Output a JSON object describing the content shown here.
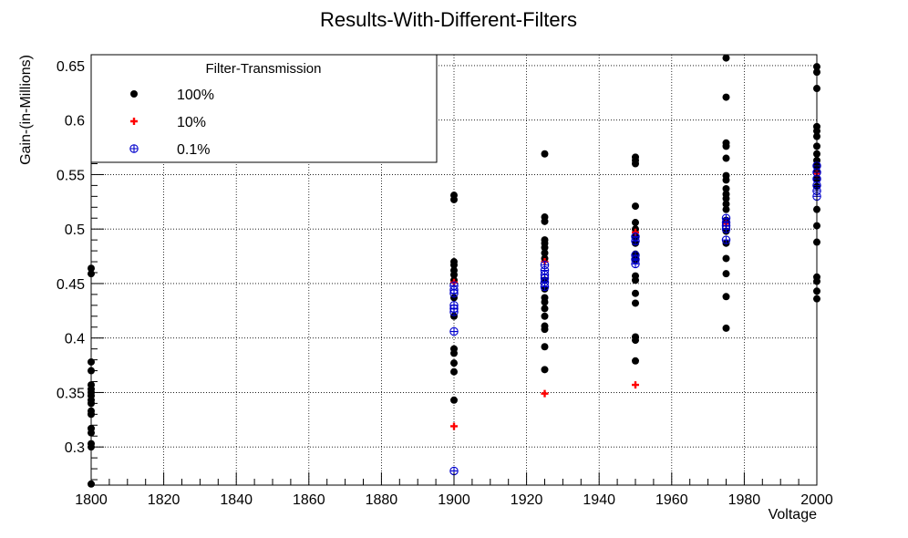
{
  "chart_data": {
    "type": "scatter",
    "title": "Results-With-Different-Filters",
    "xlabel": "Voltage",
    "ylabel": "Gain-(in-Millions)",
    "xlim": [
      1800,
      2000
    ],
    "ylim": [
      0.265,
      0.66
    ],
    "x_ticks": [
      "1800",
      "1820",
      "1840",
      "1860",
      "1880",
      "1900",
      "1920",
      "1940",
      "1960",
      "1980",
      "2000"
    ],
    "y_ticks": [
      "0.3",
      "0.35",
      "0.4",
      "0.45",
      "0.5",
      "0.55",
      "0.6",
      "0.65"
    ],
    "grid": true,
    "legend": {
      "title": "Filter-Transmission",
      "position": "top-left"
    },
    "series": [
      {
        "name": "100%",
        "marker": "filled-circle",
        "color": "#000000",
        "points": [
          [
            1800,
            0.464
          ],
          [
            1800,
            0.459
          ],
          [
            1800,
            0.378
          ],
          [
            1800,
            0.37
          ],
          [
            1800,
            0.357
          ],
          [
            1800,
            0.353
          ],
          [
            1800,
            0.35
          ],
          [
            1800,
            0.347
          ],
          [
            1800,
            0.343
          ],
          [
            1800,
            0.34
          ],
          [
            1800,
            0.333
          ],
          [
            1800,
            0.33
          ],
          [
            1800,
            0.317
          ],
          [
            1800,
            0.313
          ],
          [
            1800,
            0.303
          ],
          [
            1800,
            0.3
          ],
          [
            1800,
            0.266
          ],
          [
            1900,
            0.531
          ],
          [
            1900,
            0.527
          ],
          [
            1900,
            0.47
          ],
          [
            1900,
            0.467
          ],
          [
            1900,
            0.462
          ],
          [
            1900,
            0.458
          ],
          [
            1900,
            0.453
          ],
          [
            1900,
            0.437
          ],
          [
            1900,
            0.42
          ],
          [
            1900,
            0.39
          ],
          [
            1900,
            0.386
          ],
          [
            1900,
            0.377
          ],
          [
            1900,
            0.369
          ],
          [
            1900,
            0.343
          ],
          [
            1925,
            0.569
          ],
          [
            1925,
            0.511
          ],
          [
            1925,
            0.507
          ],
          [
            1925,
            0.49
          ],
          [
            1925,
            0.487
          ],
          [
            1925,
            0.483
          ],
          [
            1925,
            0.478
          ],
          [
            1925,
            0.473
          ],
          [
            1925,
            0.453
          ],
          [
            1925,
            0.445
          ],
          [
            1925,
            0.437
          ],
          [
            1925,
            0.433
          ],
          [
            1925,
            0.427
          ],
          [
            1925,
            0.42
          ],
          [
            1925,
            0.411
          ],
          [
            1925,
            0.408
          ],
          [
            1925,
            0.392
          ],
          [
            1925,
            0.371
          ],
          [
            1950,
            0.566
          ],
          [
            1950,
            0.563
          ],
          [
            1950,
            0.56
          ],
          [
            1950,
            0.521
          ],
          [
            1950,
            0.506
          ],
          [
            1950,
            0.5
          ],
          [
            1950,
            0.493
          ],
          [
            1950,
            0.487
          ],
          [
            1950,
            0.477
          ],
          [
            1950,
            0.472
          ],
          [
            1950,
            0.457
          ],
          [
            1950,
            0.453
          ],
          [
            1950,
            0.441
          ],
          [
            1950,
            0.432
          ],
          [
            1950,
            0.401
          ],
          [
            1950,
            0.398
          ],
          [
            1950,
            0.379
          ],
          [
            1975,
            0.657
          ],
          [
            1975,
            0.621
          ],
          [
            1975,
            0.579
          ],
          [
            1975,
            0.576
          ],
          [
            1975,
            0.565
          ],
          [
            1975,
            0.549
          ],
          [
            1975,
            0.545
          ],
          [
            1975,
            0.537
          ],
          [
            1975,
            0.532
          ],
          [
            1975,
            0.528
          ],
          [
            1975,
            0.523
          ],
          [
            1975,
            0.518
          ],
          [
            1975,
            0.508
          ],
          [
            1975,
            0.498
          ],
          [
            1975,
            0.487
          ],
          [
            1975,
            0.473
          ],
          [
            1975,
            0.459
          ],
          [
            1975,
            0.438
          ],
          [
            1975,
            0.409
          ],
          [
            2000,
            0.649
          ],
          [
            2000,
            0.644
          ],
          [
            2000,
            0.629
          ],
          [
            2000,
            0.594
          ],
          [
            2000,
            0.59
          ],
          [
            2000,
            0.585
          ],
          [
            2000,
            0.576
          ],
          [
            2000,
            0.569
          ],
          [
            2000,
            0.563
          ],
          [
            2000,
            0.558
          ],
          [
            2000,
            0.553
          ],
          [
            2000,
            0.546
          ],
          [
            2000,
            0.539
          ],
          [
            2000,
            0.518
          ],
          [
            2000,
            0.503
          ],
          [
            2000,
            0.488
          ],
          [
            2000,
            0.456
          ],
          [
            2000,
            0.452
          ],
          [
            2000,
            0.443
          ],
          [
            2000,
            0.436
          ]
        ]
      },
      {
        "name": "10%",
        "marker": "plus",
        "color": "#ff0000",
        "points": [
          [
            1900,
            0.451
          ],
          [
            1900,
            0.319
          ],
          [
            1925,
            0.47
          ],
          [
            1925,
            0.349
          ],
          [
            1950,
            0.497
          ],
          [
            1950,
            0.357
          ],
          [
            1975,
            0.505
          ],
          [
            2000,
            0.551
          ]
        ]
      },
      {
        "name": "0.1%",
        "marker": "circle-plus",
        "color": "#0000cc",
        "points": [
          [
            1900,
            0.448
          ],
          [
            1900,
            0.444
          ],
          [
            1900,
            0.441
          ],
          [
            1900,
            0.43
          ],
          [
            1900,
            0.427
          ],
          [
            1900,
            0.424
          ],
          [
            1900,
            0.406
          ],
          [
            1900,
            0.278
          ],
          [
            1925,
            0.467
          ],
          [
            1925,
            0.462
          ],
          [
            1925,
            0.458
          ],
          [
            1925,
            0.455
          ],
          [
            1925,
            0.451
          ],
          [
            1925,
            0.447
          ],
          [
            1950,
            0.493
          ],
          [
            1950,
            0.489
          ],
          [
            1950,
            0.476
          ],
          [
            1950,
            0.472
          ],
          [
            1950,
            0.468
          ],
          [
            1975,
            0.51
          ],
          [
            1975,
            0.506
          ],
          [
            1975,
            0.503
          ],
          [
            1975,
            0.5
          ],
          [
            1975,
            0.49
          ],
          [
            2000,
            0.558
          ],
          [
            2000,
            0.552
          ],
          [
            2000,
            0.546
          ],
          [
            2000,
            0.54
          ],
          [
            2000,
            0.535
          ],
          [
            2000,
            0.53
          ]
        ]
      }
    ]
  }
}
